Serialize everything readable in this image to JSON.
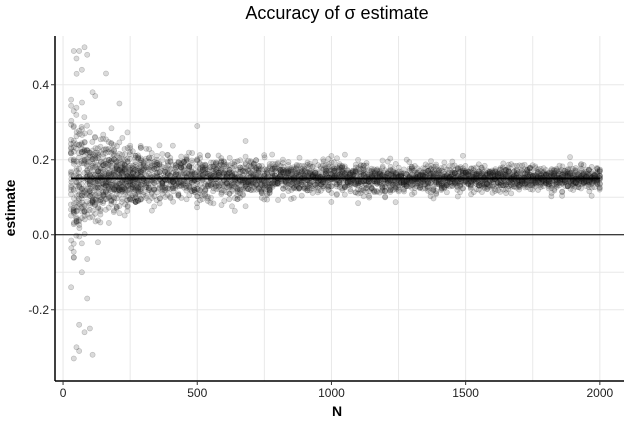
{
  "chart_data": {
    "type": "scatter",
    "title": "Accuracy of σ estimate",
    "xlabel": "N",
    "ylabel": "estimate",
    "xlim": [
      -30,
      2090
    ],
    "ylim": [
      -0.39,
      0.53
    ],
    "x_ticks": [
      0,
      500,
      1000,
      1500,
      2000
    ],
    "x_tick_labels": [
      "0",
      "500",
      "1000",
      "1500",
      "2000"
    ],
    "y_ticks": [
      -0.2,
      0.0,
      0.2,
      0.4
    ],
    "y_tick_labels": [
      "-0.2",
      "0.0",
      "0.2",
      "0.4"
    ],
    "grid": true,
    "reference_lines": [
      {
        "orientation": "horizontal",
        "y": 0.0
      },
      {
        "orientation": "horizontal",
        "y": 0.15,
        "x_range": [
          30,
          2000
        ]
      }
    ],
    "series": [
      {
        "n_range": [
          30,
          2000
        ],
        "n_step": 10,
        "center": 0.15,
        "spread_at_min_n": 0.2,
        "points": [
          {
            "x": 40,
            "y": 0.49
          },
          {
            "x": 60,
            "y": 0.49
          },
          {
            "x": 80,
            "y": 0.5
          },
          {
            "x": 90,
            "y": 0.48
          },
          {
            "x": 50,
            "y": 0.47
          },
          {
            "x": 70,
            "y": 0.44
          },
          {
            "x": 160,
            "y": 0.43
          },
          {
            "x": 110,
            "y": 0.38
          },
          {
            "x": 120,
            "y": 0.37
          },
          {
            "x": 210,
            "y": 0.35
          },
          {
            "x": 500,
            "y": 0.29
          },
          {
            "x": 40,
            "y": 0.29
          },
          {
            "x": 70,
            "y": -0.1
          },
          {
            "x": 90,
            "y": -0.17
          },
          {
            "x": 60,
            "y": -0.24
          },
          {
            "x": 80,
            "y": -0.26
          },
          {
            "x": 100,
            "y": -0.25
          },
          {
            "x": 50,
            "y": -0.3
          },
          {
            "x": 60,
            "y": -0.31
          },
          {
            "x": 110,
            "y": -0.32
          },
          {
            "x": 40,
            "y": -0.33
          },
          {
            "x": 30,
            "y": -0.14
          },
          {
            "x": 40,
            "y": -0.06
          },
          {
            "x": 130,
            "y": -0.02
          },
          {
            "x": 680,
            "y": 0.25
          },
          {
            "x": 1000,
            "y": 0.21
          }
        ]
      }
    ]
  }
}
